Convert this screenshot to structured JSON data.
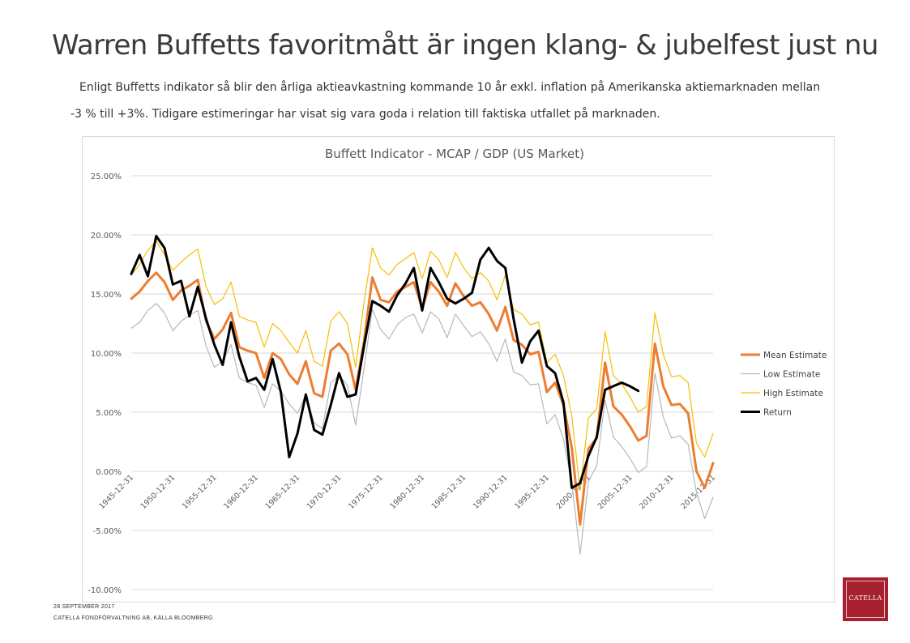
{
  "slide": {
    "title": "Warren Buffetts favoritmått är ingen klang- & jubelfest just nu",
    "intro_line1": "Enligt Buffetts indikator så blir den årliga aktieavkastning kommande 10 år exkl. inflation på Amerikanska aktiemarknaden mellan",
    "intro_line2": "-3 % till +3%. Tidigare estimeringar har visat sig vara goda i relation till faktiska utfallet på marknaden."
  },
  "footer": {
    "date": "28 SEPTEMBER 2017",
    "source": "CATELLA FONDFÖRVALTNING AB, KÄLLA BLOOMBERG"
  },
  "logo": {
    "text": "CATELLA",
    "color": "#a7202e"
  },
  "chart_data": {
    "type": "line",
    "title": "Buffett Indicator - MCAP / GDP (US Market)",
    "xlabel": "",
    "ylabel": "",
    "ylim": [
      -10,
      25
    ],
    "yticks": [
      25,
      20,
      15,
      10,
      5,
      0,
      -5,
      -10
    ],
    "ytick_labels": [
      "25.00%",
      "20.00%",
      "15.00%",
      "10.00%",
      "5.00%",
      "0.00%",
      "-5.00%",
      "-10.00%"
    ],
    "x_start_year": 1945,
    "xtick_labels": [
      "1945-12-31",
      "1950-12-31",
      "1955-12-31",
      "1960-12-31",
      "1965-12-31",
      "1970-12-31",
      "1975-12-31",
      "1980-12-31",
      "1985-12-31",
      "1990-12-31",
      "1995-12-31",
      "2000-12-31",
      "2005-12-31",
      "2010-12-31",
      "2015-12-31"
    ],
    "grid": true,
    "legend_position": "right",
    "series": [
      {
        "name": "Mean Estimate",
        "color": "#ed7d31",
        "width": 3,
        "values": [
          14.6,
          15.2,
          16.1,
          16.8,
          16.0,
          14.5,
          15.3,
          15.7,
          16.2,
          12.7,
          11.2,
          12.0,
          13.4,
          10.5,
          10.2,
          10.0,
          7.9,
          10.0,
          9.5,
          8.2,
          7.4,
          9.3,
          6.6,
          6.3,
          10.2,
          10.8,
          9.9,
          6.9,
          11.0,
          16.4,
          14.5,
          14.3,
          15.2,
          15.6,
          16.0,
          13.8,
          16.0,
          15.2,
          14.0,
          15.9,
          14.8,
          14.0,
          14.3,
          13.3,
          11.9,
          13.9,
          11.1,
          10.7,
          9.9,
          10.1,
          6.7,
          7.5,
          5.6,
          2.0,
          -4.5,
          1.9,
          2.8,
          9.2,
          5.5,
          4.8,
          3.8,
          2.6,
          3.0,
          10.8,
          7.2,
          5.6,
          5.7,
          4.9,
          0.0,
          -1.4,
          0.7
        ]
      },
      {
        "name": "Low Estimate",
        "color": "#b8b8b8",
        "width": 1.2,
        "values": [
          12.1,
          12.6,
          13.6,
          14.2,
          13.4,
          11.9,
          12.7,
          13.2,
          13.6,
          10.6,
          8.8,
          9.3,
          10.7,
          7.9,
          7.5,
          7.3,
          5.4,
          7.4,
          6.8,
          5.7,
          4.9,
          6.5,
          4.1,
          3.6,
          7.5,
          8.1,
          7.3,
          3.9,
          8.7,
          13.7,
          12.0,
          11.2,
          12.4,
          13.0,
          13.3,
          11.7,
          13.5,
          12.9,
          11.3,
          13.3,
          12.3,
          11.4,
          11.8,
          10.8,
          9.3,
          11.2,
          8.4,
          8.1,
          7.3,
          7.4,
          4.0,
          4.8,
          2.7,
          -1.0,
          -7.0,
          -0.9,
          0.5,
          6.0,
          2.9,
          2.1,
          1.1,
          -0.1,
          0.4,
          8.3,
          4.6,
          2.8,
          3.0,
          2.3,
          -1.8,
          -4.0,
          -2.2
        ]
      },
      {
        "name": "High Estimate",
        "color": "#f5c000",
        "width": 1.2,
        "values": [
          16.6,
          17.5,
          18.7,
          19.5,
          18.3,
          17.0,
          17.7,
          18.3,
          18.8,
          15.6,
          14.1,
          14.6,
          16.0,
          13.1,
          12.8,
          12.6,
          10.5,
          12.5,
          11.9,
          10.9,
          10.0,
          11.9,
          9.3,
          8.9,
          12.7,
          13.5,
          12.5,
          8.8,
          14.3,
          18.9,
          17.2,
          16.6,
          17.5,
          18.0,
          18.5,
          16.3,
          18.6,
          17.9,
          16.4,
          18.5,
          17.2,
          16.3,
          16.8,
          16.1,
          14.5,
          16.6,
          13.7,
          13.3,
          12.4,
          12.6,
          9.2,
          9.9,
          8.1,
          4.7,
          -1.6,
          4.5,
          5.3,
          11.8,
          8.1,
          7.4,
          6.3,
          5.0,
          5.5,
          13.4,
          9.9,
          8.0,
          8.1,
          7.5,
          2.4,
          1.2,
          3.2
        ]
      },
      {
        "name": "Return",
        "color": "#000000",
        "width": 3,
        "values": [
          16.7,
          18.3,
          16.5,
          19.9,
          18.9,
          15.8,
          16.1,
          13.1,
          15.6,
          12.9,
          10.7,
          9.0,
          12.6,
          9.7,
          7.6,
          7.9,
          6.9,
          9.5,
          6.7,
          1.2,
          3.2,
          6.5,
          3.5,
          3.1,
          5.6,
          8.3,
          6.3,
          6.5,
          10.6,
          14.4,
          14.0,
          13.5,
          14.9,
          15.9,
          17.2,
          13.6,
          17.2,
          16.0,
          14.6,
          14.2,
          14.6,
          15.1,
          17.9,
          18.9,
          17.8,
          17.2,
          12.9,
          9.2,
          11.0,
          11.9,
          8.9,
          8.3,
          5.8,
          -1.4,
          -1.0,
          1.3,
          2.9,
          6.9,
          7.2,
          7.5,
          7.2,
          6.8,
          null,
          null,
          null,
          null,
          null,
          null,
          null,
          null,
          null
        ]
      }
    ]
  }
}
